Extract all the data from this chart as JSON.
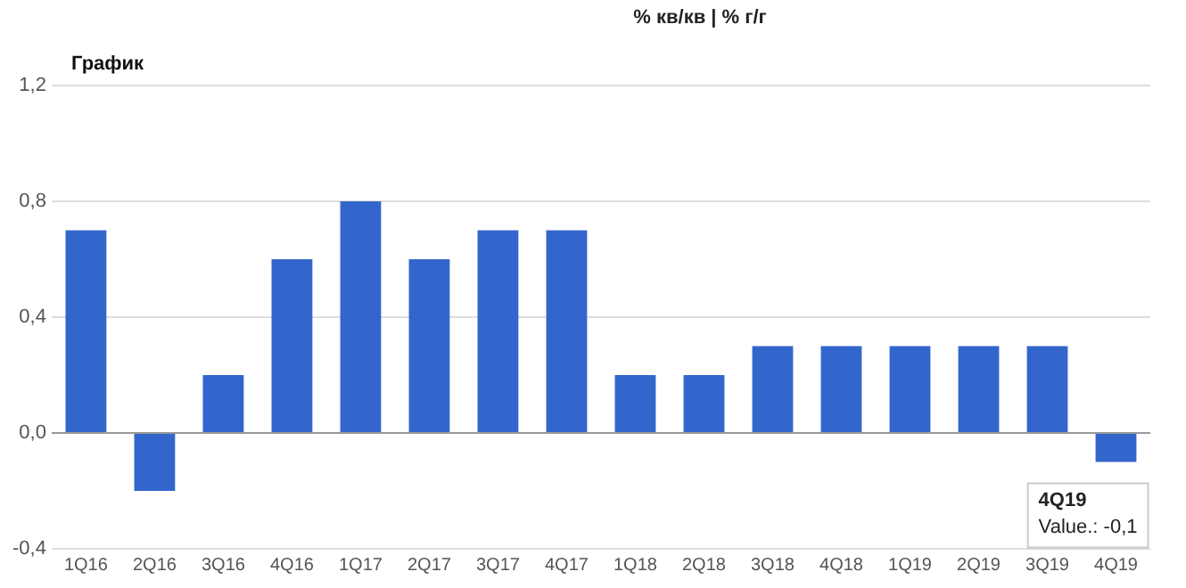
{
  "chart_data": {
    "type": "bar",
    "title": "График",
    "subtitle": "% кв/кв | % г/г",
    "categories": [
      "1Q16",
      "2Q16",
      "3Q16",
      "4Q16",
      "1Q17",
      "2Q17",
      "3Q17",
      "4Q17",
      "1Q18",
      "2Q18",
      "3Q18",
      "4Q18",
      "1Q19",
      "2Q19",
      "3Q19",
      "4Q19"
    ],
    "values": [
      0.7,
      -0.2,
      0.2,
      0.6,
      0.8,
      0.6,
      0.7,
      0.7,
      0.2,
      0.2,
      0.3,
      0.3,
      0.3,
      0.3,
      0.3,
      -0.1
    ],
    "color": "#3366cc",
    "ylim": [
      -0.4,
      1.2
    ],
    "yticks": [
      {
        "value": -0.4,
        "label": "-0,4"
      },
      {
        "value": 0,
        "label": "0,0"
      },
      {
        "value": 0.4,
        "label": "0,4"
      },
      {
        "value": 0.8,
        "label": "0,8"
      },
      {
        "value": 1.2,
        "label": "1,2"
      }
    ],
    "grid": "y",
    "legend": false,
    "annotations": [
      {
        "text": "4Q19\nValue.: -0,1",
        "x": "4Q19",
        "y": -0.1
      }
    ]
  }
}
